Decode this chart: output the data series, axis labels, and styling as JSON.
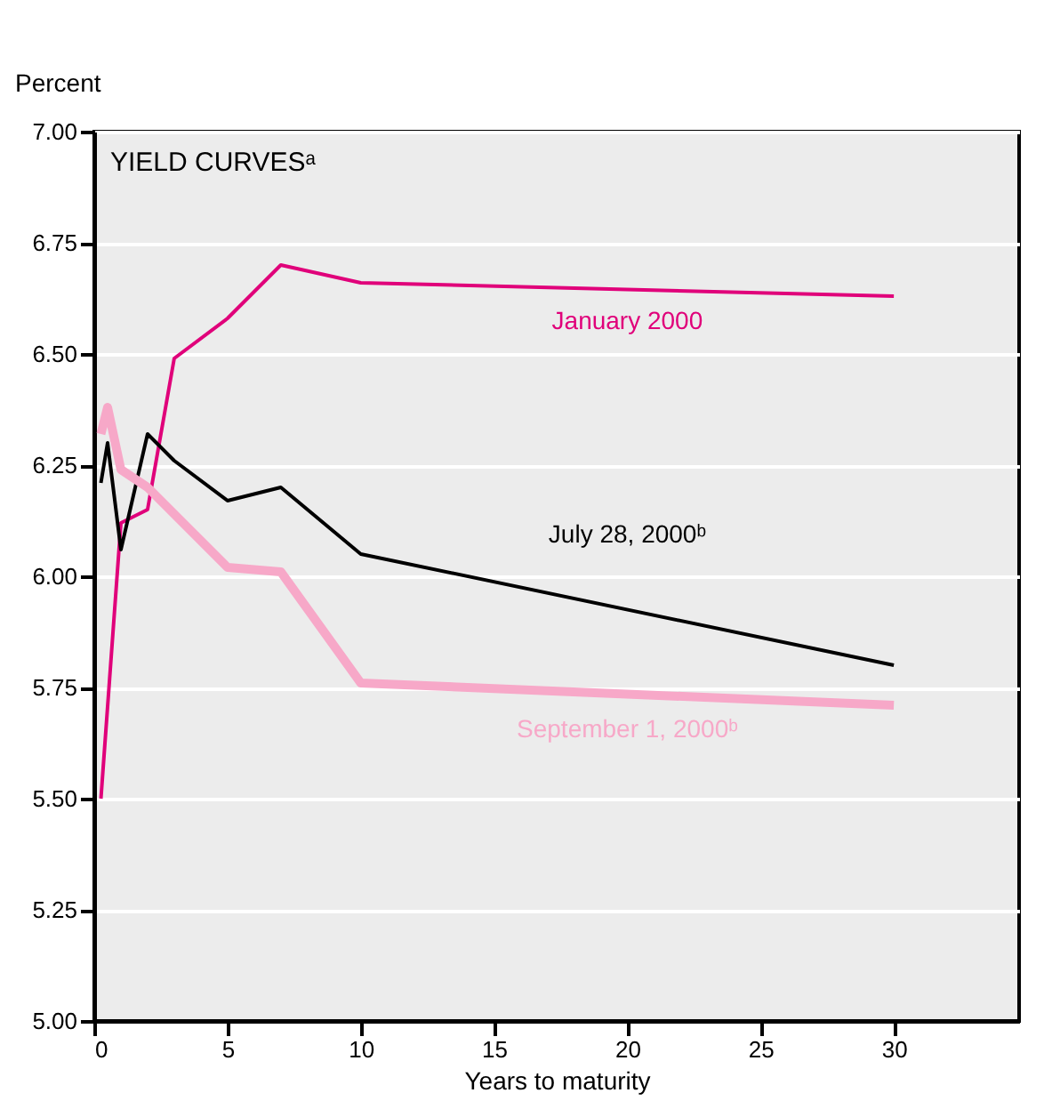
{
  "chart_data": {
    "type": "line",
    "title": "YIELD CURVESᵃ",
    "xlabel": "Years to maturity",
    "ylabel": "Percent",
    "xlim": [
      0,
      34.7
    ],
    "xticks": [
      0,
      5,
      10,
      15,
      20,
      25,
      30
    ],
    "ylim": [
      5,
      7
    ],
    "yticks": [
      {
        "value": 5,
        "label": "5.00"
      },
      {
        "value": 5.25,
        "label": "5.25"
      },
      {
        "value": 5.5,
        "label": "5.50"
      },
      {
        "value": 5.75,
        "label": "5.75"
      },
      {
        "value": 6,
        "label": "6.00"
      },
      {
        "value": 6.25,
        "label": "6.25"
      },
      {
        "value": 6.5,
        "label": "6.50"
      },
      {
        "value": 6.75,
        "label": "6.75"
      },
      {
        "value": 7,
        "label": "7.00"
      }
    ],
    "grid": "y",
    "legend": false,
    "marker": "none",
    "line_style": "solid",
    "series": [
      {
        "name": "January 2000",
        "color": "#e0007a",
        "x": [
          0.25,
          1,
          2,
          3,
          5,
          7,
          10,
          30
        ],
        "values": [
          5.5,
          6.12,
          6.15,
          6.49,
          6.58,
          6.7,
          6.66,
          6.63
        ]
      },
      {
        "name": "July 28, 2000ᵇ",
        "color": "#000000",
        "x": [
          0.25,
          0.5,
          1,
          2,
          3,
          5,
          7,
          10,
          30
        ],
        "values": [
          6.21,
          6.3,
          6.06,
          6.32,
          6.26,
          6.17,
          6.2,
          6.05,
          5.8
        ]
      },
      {
        "name": "September 1, 2000ᵇ",
        "color": "#f7a8c8",
        "x": [
          0.25,
          0.5,
          1,
          2,
          3,
          5,
          7,
          10,
          30
        ],
        "values": [
          6.32,
          6.38,
          6.24,
          6.2,
          6.14,
          6.02,
          6.01,
          5.76,
          5.71
        ]
      }
    ]
  }
}
